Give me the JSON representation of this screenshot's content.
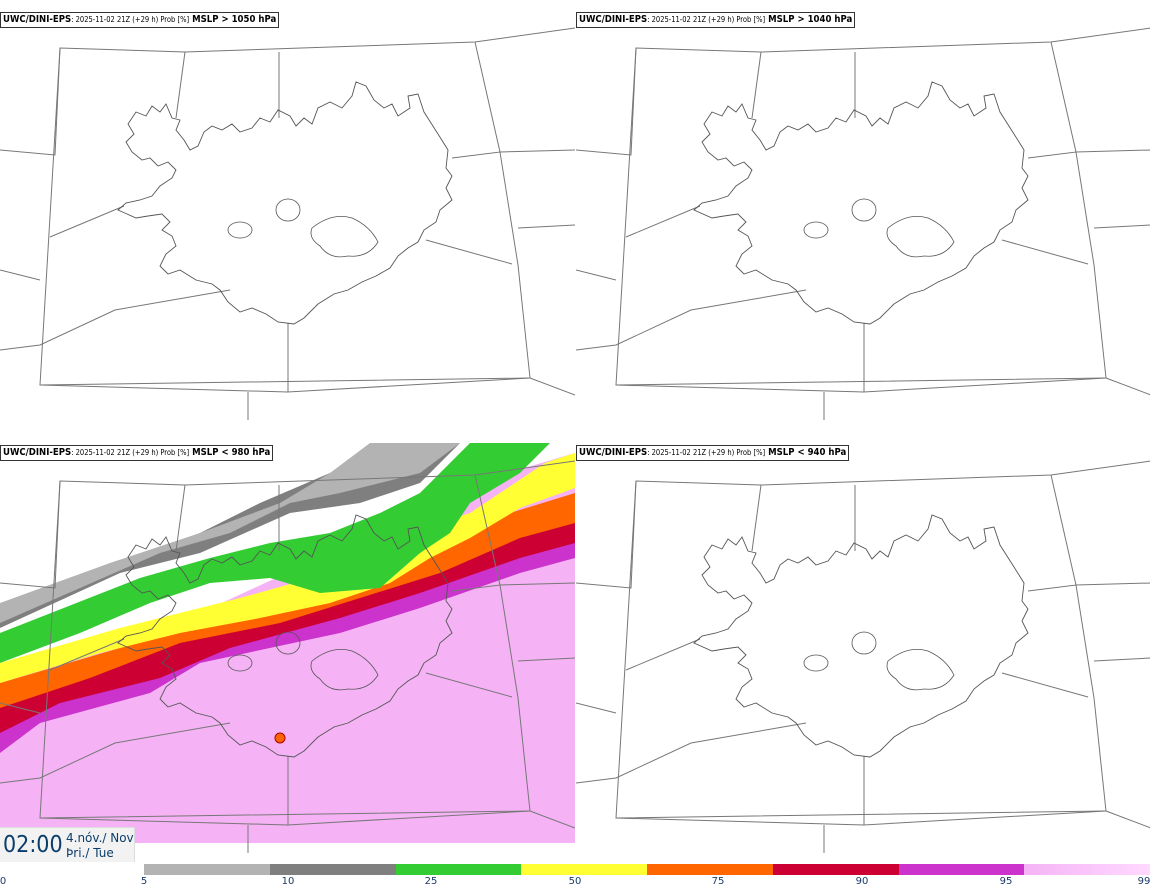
{
  "panels": [
    {
      "model": "UWC/DINI-EPS",
      "meta": ": 2025-11-02 21Z (+29 h) Prob [%]",
      "param": " MSLP > 1050 hPa",
      "filled": false
    },
    {
      "model": "UWC/DINI-EPS",
      "meta": ": 2025-11-02 21Z (+29 h) Prob [%]",
      "param": " MSLP > 1040 hPa",
      "filled": false
    },
    {
      "model": "UWC/DINI-EPS",
      "meta": ": 2025-11-02 21Z (+29 h) Prob [%]",
      "param": " MSLP < 980 hPa",
      "filled": true
    },
    {
      "model": "UWC/DINI-EPS",
      "meta": ": 2025-11-02 21Z (+29 h) Prob [%]",
      "param": " MSLP < 940 hPa",
      "filled": false
    }
  ],
  "time": {
    "clock": "02:00",
    "day_line1": "4.nóv./ Nov",
    "day_line2": "Þri./ Tue"
  },
  "colorbar": {
    "ticks": [
      "0",
      "5",
      "10",
      "25",
      "50",
      "75",
      "90",
      "95",
      "99"
    ],
    "colors": [
      "#ffffff",
      "#b3b3b3",
      "#7f7f7f",
      "#33cc33",
      "#ffff33",
      "#ff6600",
      "#cc0033",
      "#cc33cc",
      "#f5b3f5"
    ]
  }
}
